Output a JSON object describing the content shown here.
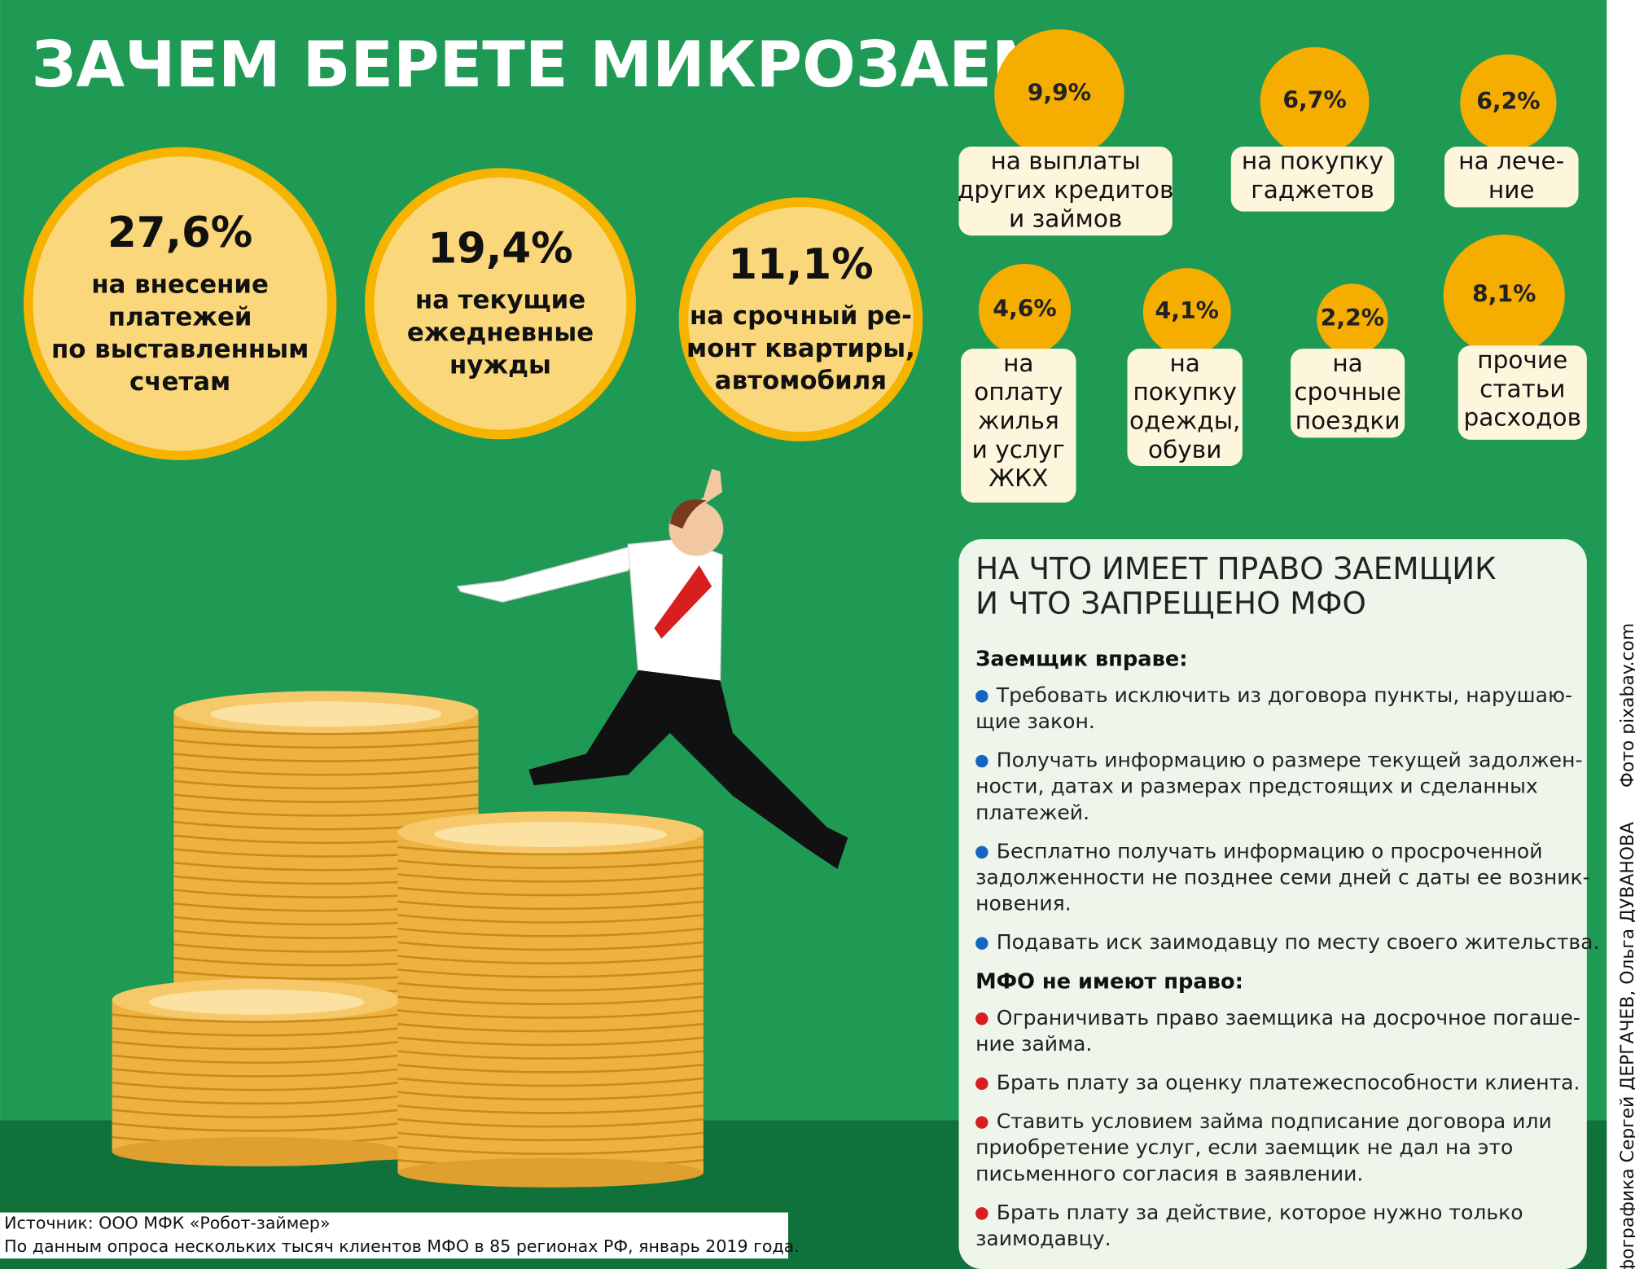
{
  "title": "ЗАЧЕМ БЕРЕТЕ МИКРОЗАЕМ",
  "big_items": [
    {
      "value": "27,6%",
      "lines": [
        "на внесение",
        "платежей",
        "по выставленным",
        "счетам"
      ]
    },
    {
      "value": "19,4%",
      "lines": [
        "на текущие",
        "ежедневные",
        "нужды"
      ]
    },
    {
      "value": "11,1%",
      "lines": [
        "на срочный ре-",
        "монт квартиры,",
        "автомобиля"
      ]
    }
  ],
  "small_items": [
    {
      "value": "9,9%",
      "lines": [
        "на выплаты",
        "других кредитов",
        "и займов"
      ]
    },
    {
      "value": "6,7%",
      "lines": [
        "на покупку",
        "гаджетов"
      ]
    },
    {
      "value": "6,2%",
      "lines": [
        "на лече-",
        "ние"
      ]
    },
    {
      "value": "4,6%",
      "lines": [
        "на",
        "оплату",
        "жилья",
        "и услуг",
        "ЖКХ"
      ]
    },
    {
      "value": "4,1%",
      "lines": [
        "на",
        "покупку",
        "одежды,",
        "обуви"
      ]
    },
    {
      "value": "2,2%",
      "lines": [
        "на",
        "срочные",
        "поездки"
      ]
    },
    {
      "value": "8,1%",
      "lines": [
        "прочие",
        "статьи",
        "расходов"
      ]
    }
  ],
  "rights": {
    "heading": [
      "НА ЧТО ИМЕЕТ ПРАВО ЗАЕМЩИК",
      "И ЧТО ЗАПРЕЩЕНО МФО"
    ],
    "sections": [
      {
        "title": "Заемщик вправе:",
        "items": [
          [
            "Требовать исключить из договора пункты, нарушаю-",
            "щие закон."
          ],
          [
            "Получать информацию о размере текущей задолжен-",
            "ности, датах и размерах предстоящих и сделанных",
            "платежей."
          ],
          [
            "Бесплатно получать информацию о просроченной",
            "задолженности не позднее семи дней с даты ее возник-",
            "новения."
          ],
          [
            "Подавать иск заимодавцу по месту своего жительства."
          ]
        ]
      },
      {
        "title": "МФО не имеют право:",
        "items": [
          [
            "Ограничивать право заемщика на досрочное погаше-",
            "ние займа."
          ],
          [
            "Брать плату за оценку платежеспособности клиента."
          ],
          [
            "Ставить условием займа подписание договора или",
            "приобретение услуг, если заемщик не дал на это",
            "письменного согласия в заявлении."
          ],
          [
            "Брать плату за действие, которое нужно только",
            "заимодавцу."
          ]
        ]
      }
    ]
  },
  "source": [
    "Источник: ООО МФК «Робот-займер»",
    "По данным опроса нескольких тысяч клиентов МФО в 85 регионах РФ, январь 2019 года."
  ],
  "credits": [
    "Фото pixabay.com",
    "Инфографика Сергей ДЕРГАЧЕВ, Ольга ДУВАНОВА"
  ]
}
